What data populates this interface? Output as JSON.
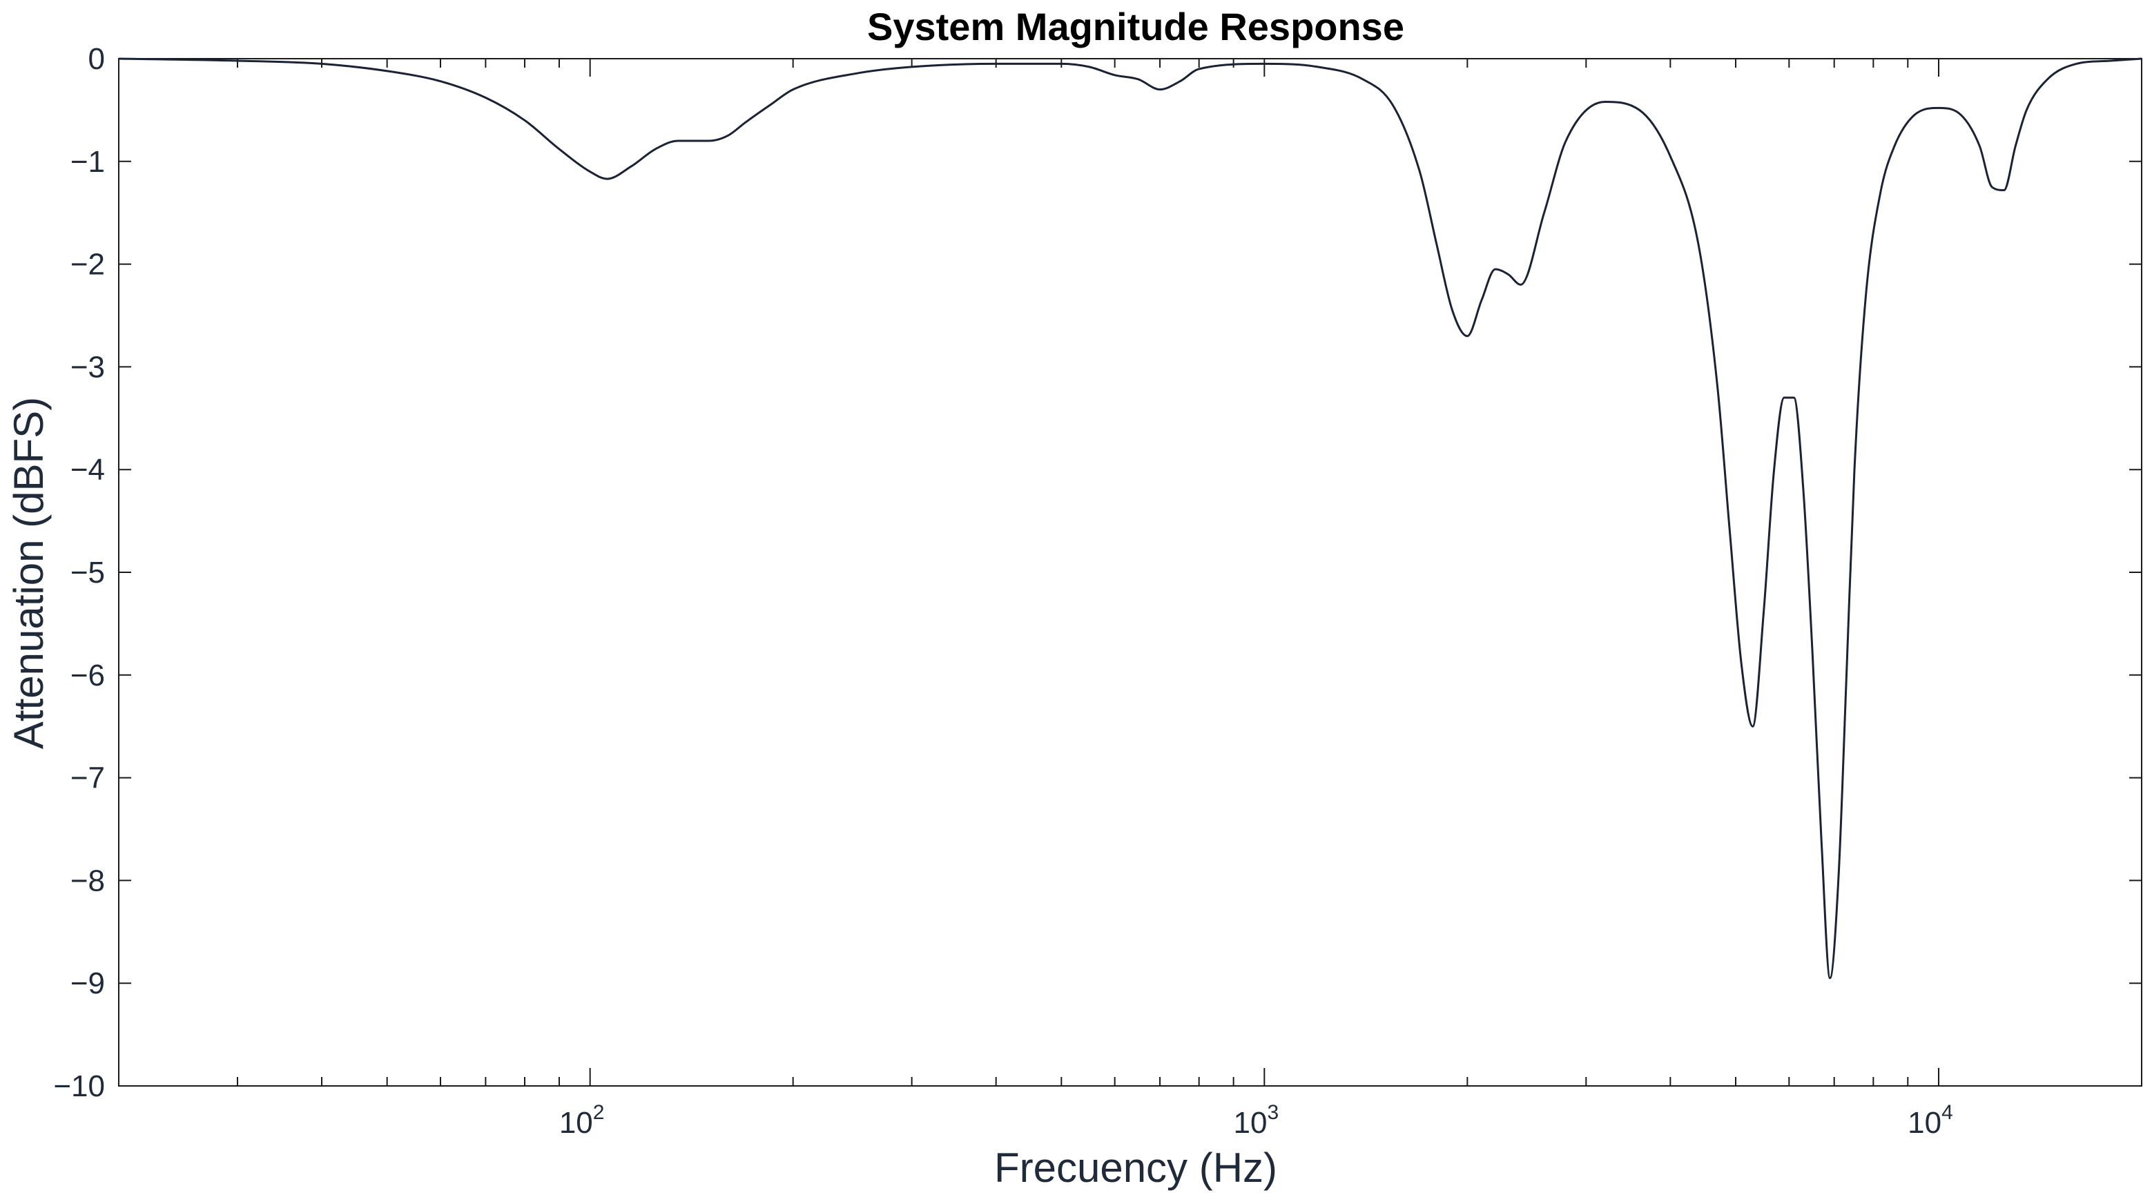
{
  "chart_data": {
    "type": "line",
    "title": "System Magnitude Response",
    "xlabel": "Frecuency (Hz)",
    "ylabel": "Attenuation (dBFS)",
    "x_scale": "log",
    "xlim": [
      20,
      20000
    ],
    "ylim": [
      -10,
      0
    ],
    "grid": false,
    "y_ticks": [
      {
        "value": 0,
        "label": "0"
      },
      {
        "value": -1,
        "label": "−1"
      },
      {
        "value": -2,
        "label": "−2"
      },
      {
        "value": -3,
        "label": "−3"
      },
      {
        "value": -4,
        "label": "−4"
      },
      {
        "value": -5,
        "label": "−5"
      },
      {
        "value": -6,
        "label": "−6"
      },
      {
        "value": -7,
        "label": "−7"
      },
      {
        "value": -8,
        "label": "−8"
      },
      {
        "value": -9,
        "label": "−9"
      },
      {
        "value": -10,
        "label": "−10"
      }
    ],
    "x_ticks": [
      {
        "value": 100,
        "base": "10",
        "exp": "2"
      },
      {
        "value": 1000,
        "base": "10",
        "exp": "3"
      },
      {
        "value": 10000,
        "base": "10",
        "exp": "4"
      }
    ],
    "line_color": "#1a2236",
    "series": [
      {
        "x": [
          20,
          30,
          40,
          50,
          60,
          70,
          80,
          90,
          100,
          106,
          115,
          125,
          135,
          150,
          160,
          170,
          185,
          200,
          250,
          300,
          400,
          500,
          550,
          600,
          650,
          700,
          750,
          800,
          1000,
          1200,
          1400,
          1550,
          1700,
          1800,
          1900,
          2000,
          2100,
          2200,
          2300,
          2400,
          2600,
          2800,
          3200,
          3600,
          4000,
          4400,
          4700,
          4900,
          5100,
          5300,
          5500,
          5700,
          5900,
          6100,
          6300,
          6500,
          6700,
          6900,
          7100,
          7300,
          7500,
          7800,
          8200,
          8600,
          9200,
          10000,
          10800,
          11500,
          12000,
          12500,
          13000,
          13500,
          14500,
          16000,
          18000,
          20000
        ],
        "y": [
          0,
          -0.02,
          -0.05,
          -0.12,
          -0.22,
          -0.38,
          -0.6,
          -0.88,
          -1.1,
          -1.17,
          -1.05,
          -0.88,
          -0.8,
          -0.8,
          -0.75,
          -0.62,
          -0.45,
          -0.3,
          -0.14,
          -0.08,
          -0.05,
          -0.05,
          -0.08,
          -0.16,
          -0.2,
          -0.3,
          -0.22,
          -0.1,
          -0.05,
          -0.08,
          -0.2,
          -0.45,
          -1.1,
          -1.8,
          -2.45,
          -2.7,
          -2.35,
          -2.05,
          -2.1,
          -2.2,
          -1.5,
          -0.8,
          -0.42,
          -0.5,
          -0.95,
          -1.8,
          -3.2,
          -4.6,
          -5.9,
          -6.5,
          -5.4,
          -4.0,
          -3.3,
          -3.3,
          -4.2,
          -5.8,
          -7.6,
          -8.95,
          -8.0,
          -6.0,
          -4.0,
          -2.3,
          -1.3,
          -0.85,
          -0.55,
          -0.48,
          -0.55,
          -0.85,
          -1.25,
          -1.28,
          -0.85,
          -0.5,
          -0.2,
          -0.05,
          -0.02,
          0
        ]
      }
    ]
  }
}
